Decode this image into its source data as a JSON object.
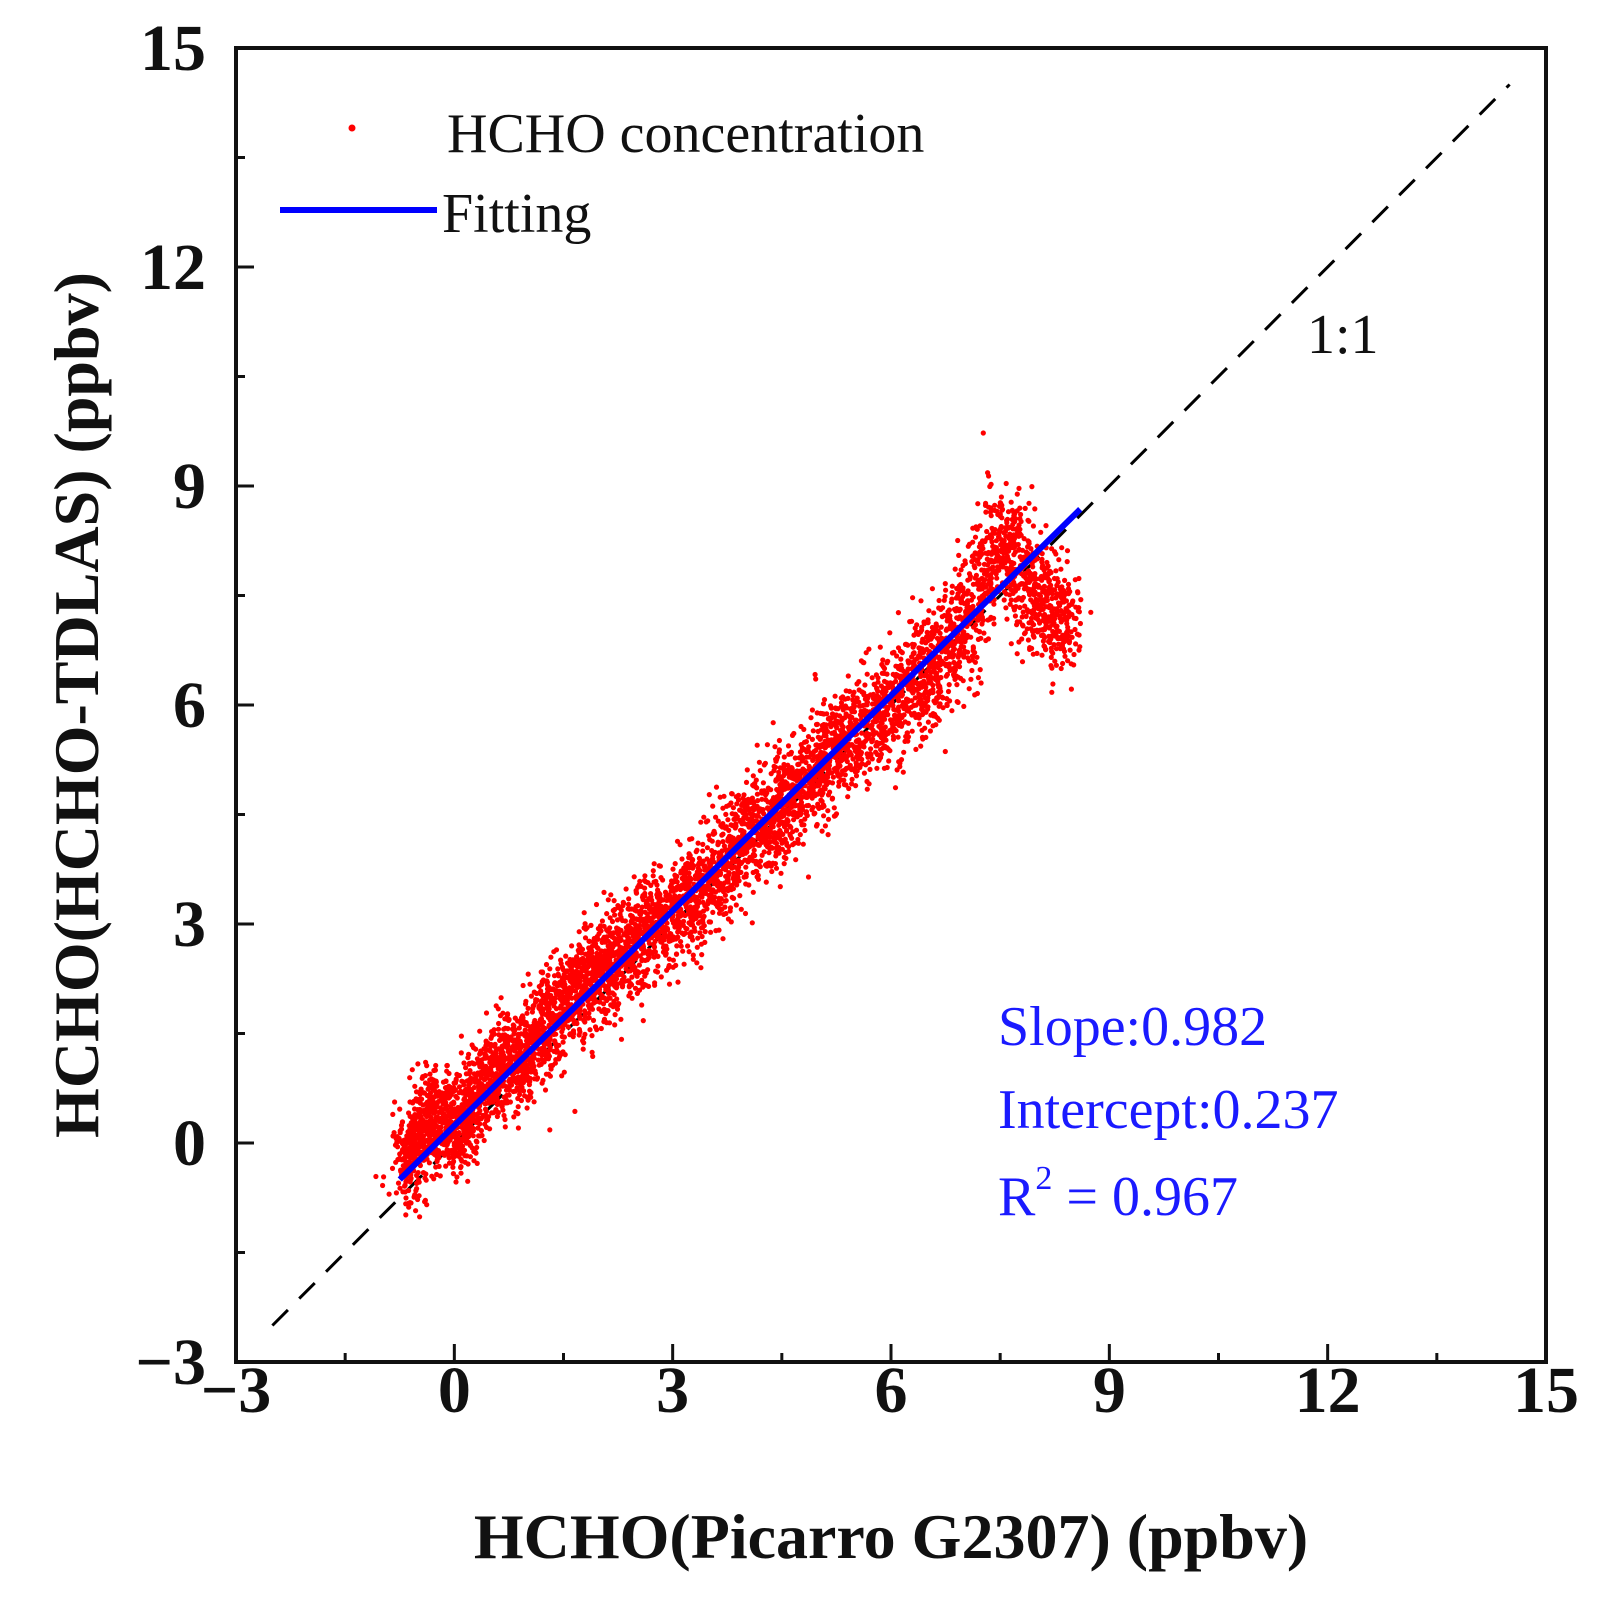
{
  "chart_data": {
    "type": "scatter",
    "title": "",
    "xlabel": "HCHO(Picarro G2307) (ppbv)",
    "ylabel": "HCHO(HCHO-TDLAS) (ppbv)",
    "xlim": [
      -3,
      15
    ],
    "ylim": [
      -3,
      15
    ],
    "x_ticks": [
      -3,
      0,
      3,
      6,
      9,
      12,
      15
    ],
    "y_ticks": [
      -3,
      0,
      3,
      6,
      9,
      12,
      15
    ],
    "x_tick_labels": [
      "−3",
      "0",
      "3",
      "6",
      "9",
      "12",
      "15"
    ],
    "y_tick_labels": [
      "−3",
      "0",
      "3",
      "6",
      "9",
      "12",
      "15"
    ],
    "grid": false,
    "legend_position": "top-left",
    "series": [
      {
        "name": "HCHO concentration",
        "kind": "scatter",
        "color": "#ff0000",
        "x_range": [
          -0.7,
          8.5
        ],
        "point_count_approx": 6000,
        "sample_points": [
          [
            -0.6,
            -0.2
          ],
          [
            -0.3,
            0.5
          ],
          [
            0.0,
            0.1
          ],
          [
            0.3,
            0.6
          ],
          [
            0.5,
            1.0
          ],
          [
            1.0,
            1.2
          ],
          [
            1.5,
            2.0
          ],
          [
            2.0,
            2.3
          ],
          [
            2.5,
            2.8
          ],
          [
            3.0,
            3.1
          ],
          [
            3.5,
            3.6
          ],
          [
            4.0,
            4.2
          ],
          [
            4.5,
            4.6
          ],
          [
            5.0,
            5.2
          ],
          [
            5.5,
            5.6
          ],
          [
            6.0,
            6.0
          ],
          [
            6.5,
            6.4
          ],
          [
            7.0,
            7.0
          ],
          [
            7.5,
            8.4
          ],
          [
            8.0,
            7.4
          ],
          [
            8.4,
            7.2
          ]
        ]
      },
      {
        "name": "Fitting",
        "kind": "line",
        "color": "#0000ff",
        "slope": 0.982,
        "intercept": 0.237,
        "x": [
          -0.75,
          8.6
        ]
      },
      {
        "name": "1:1",
        "kind": "reference-line",
        "color": "#000000",
        "dash": "dashed",
        "x": [
          -2.5,
          14.5
        ],
        "y": [
          -2.5,
          14.5
        ]
      }
    ],
    "legend": [
      {
        "label": "HCHO concentration",
        "symbol": "dot",
        "color": "#ff0000"
      },
      {
        "label": "Fitting",
        "symbol": "line",
        "color": "#0000ff"
      }
    ],
    "annotations": {
      "ratio_label": "1:1",
      "slope_text": "Slope:0.982",
      "intercept_text": "Intercept:0.237",
      "r2_prefix": "R",
      "r2_superscript": "2",
      "r2_suffix": " = 0.967",
      "stats_color": "#1a1aff"
    }
  }
}
